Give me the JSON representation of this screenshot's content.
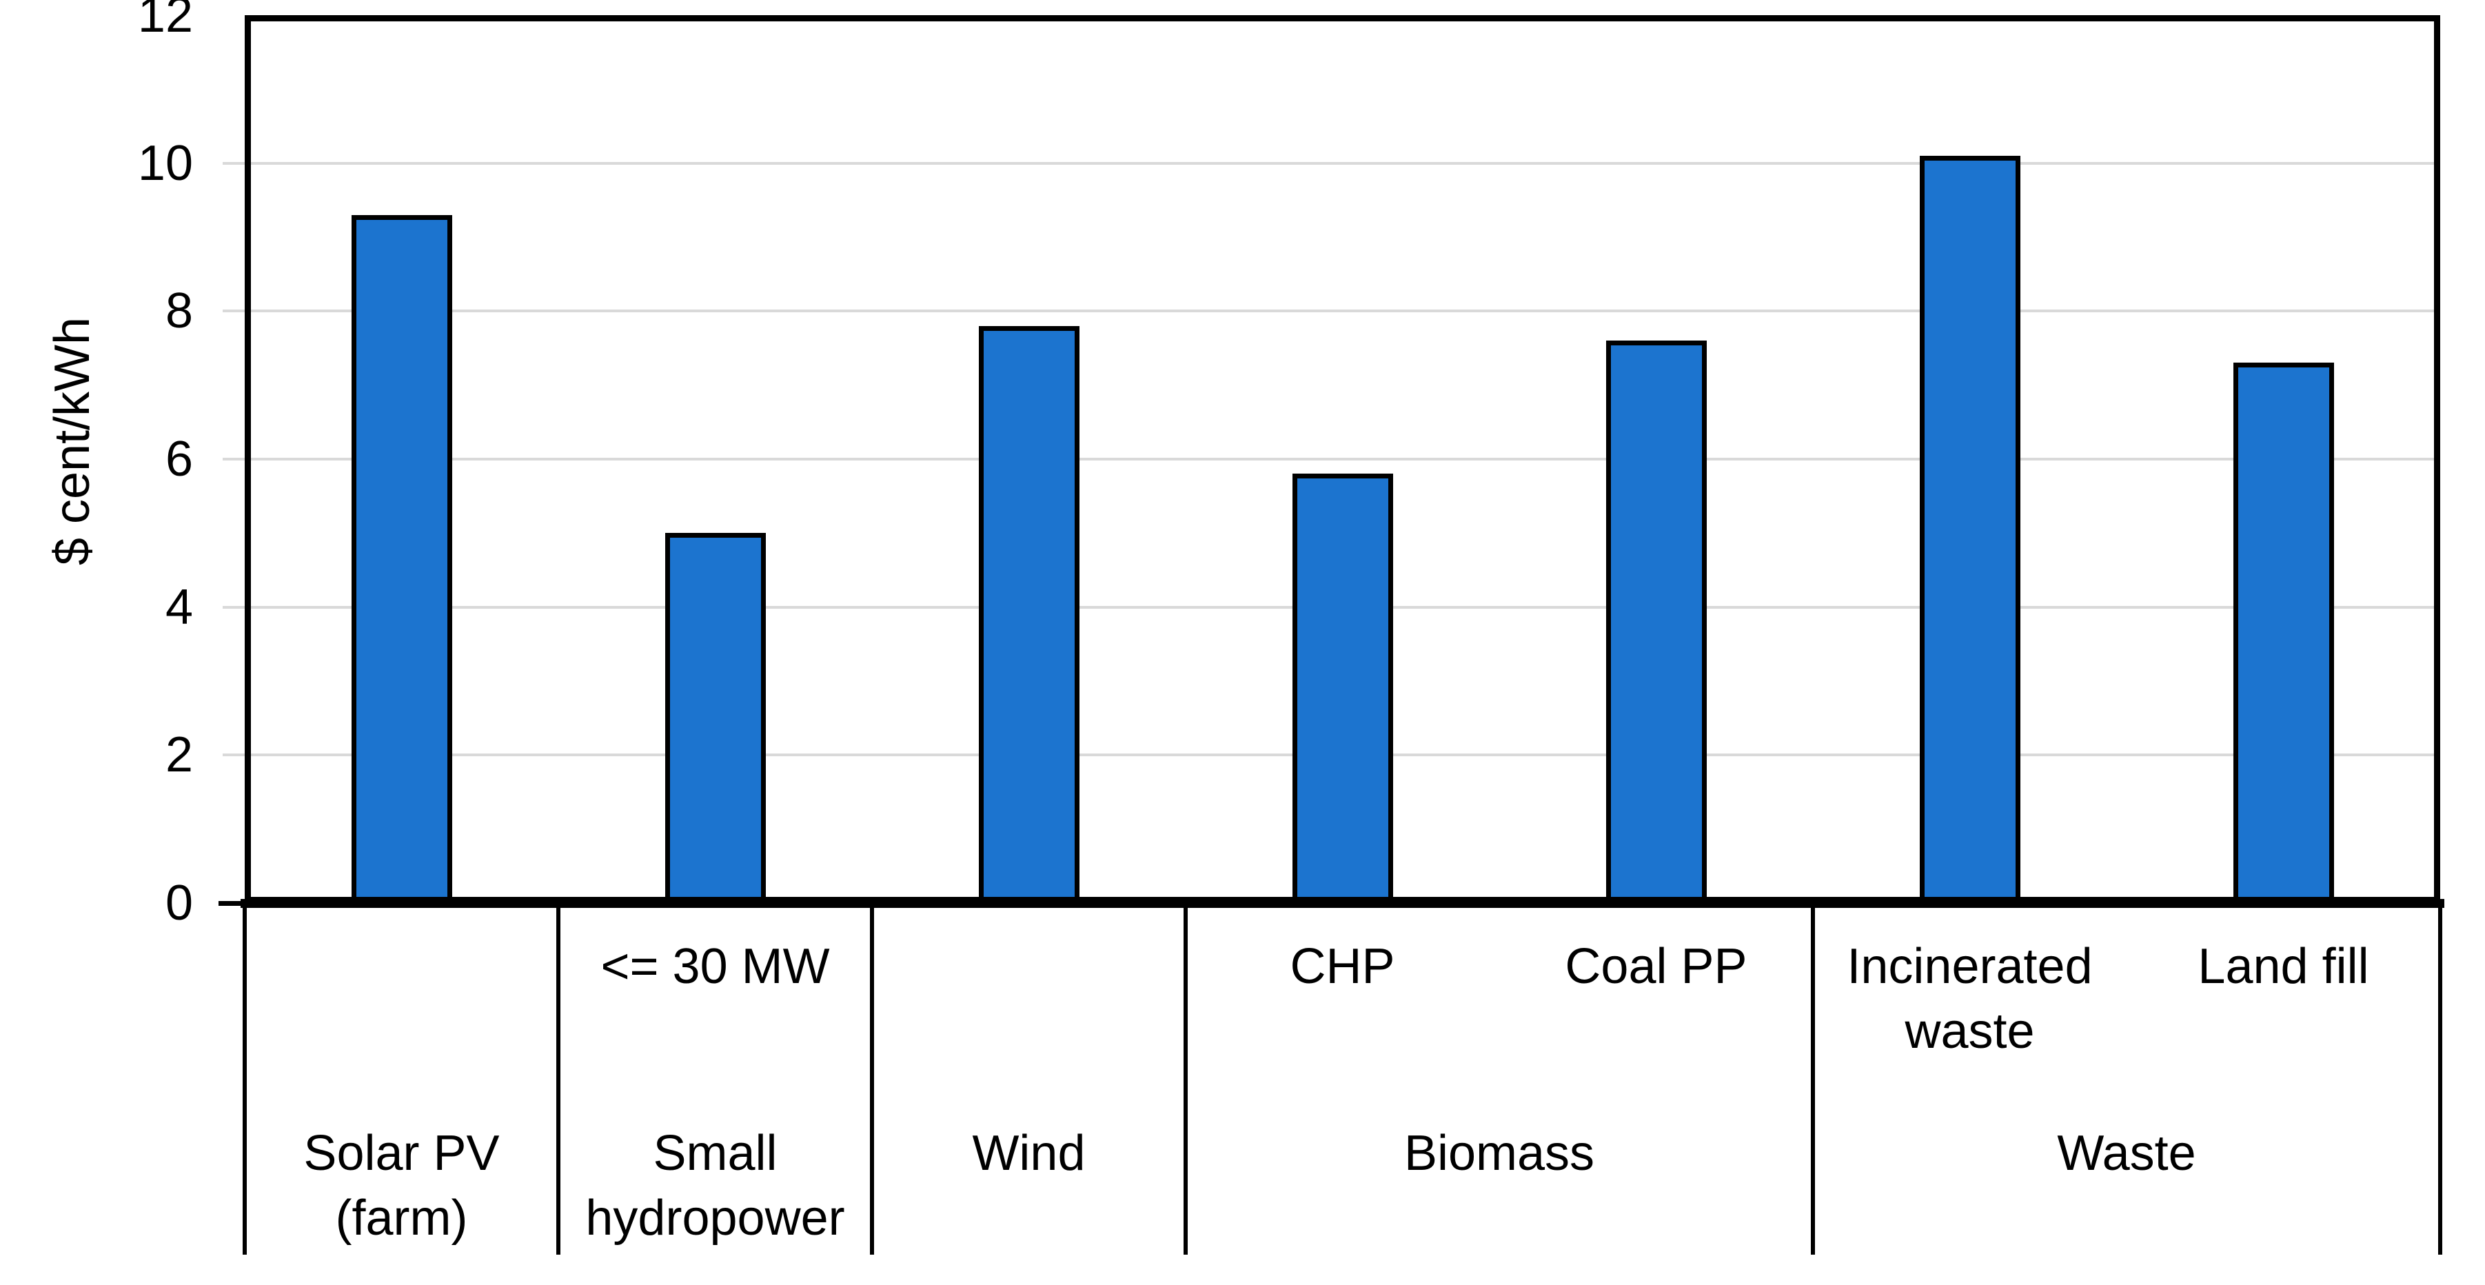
{
  "chart_data": {
    "type": "bar",
    "title": "",
    "ylabel": "$ cent/kWh",
    "ylim": [
      0,
      12
    ],
    "yticks": [
      0,
      2,
      4,
      6,
      8,
      10,
      12
    ],
    "grid": "horizontal-major",
    "legend": "none",
    "bar_color": "#1c74cf",
    "bar_outline_color": "#000000",
    "gridline_color": "#d9d9d9",
    "axis_color": "#000000",
    "text_color": "#000000",
    "categories": [
      {
        "id": "solar-pv-farm",
        "group": "Solar PV (farm)",
        "sub": "",
        "value": 9.3
      },
      {
        "id": "small-hydropower",
        "group": "Small hydropower",
        "sub": "<= 30 MW",
        "value": 5.0
      },
      {
        "id": "wind",
        "group": "Wind",
        "sub": "",
        "value": 7.8
      },
      {
        "id": "biomass-chp",
        "group": "Biomass",
        "sub": "CHP",
        "value": 5.8
      },
      {
        "id": "biomass-coal-pp",
        "group": "Biomass",
        "sub": "Coal PP",
        "value": 7.6
      },
      {
        "id": "waste-incinerated",
        "group": "Waste",
        "sub": "Incinerated waste",
        "value": 10.1
      },
      {
        "id": "waste-land-fill",
        "group": "Waste",
        "sub": "Land fill",
        "value": 7.3
      }
    ],
    "group_axis": [
      {
        "label": "Solar PV (farm)",
        "span": 1
      },
      {
        "label": "Small hydropower",
        "span": 1
      },
      {
        "label": "Wind",
        "span": 1
      },
      {
        "label": "Biomass",
        "span": 2
      },
      {
        "label": "Waste",
        "span": 2
      }
    ]
  }
}
